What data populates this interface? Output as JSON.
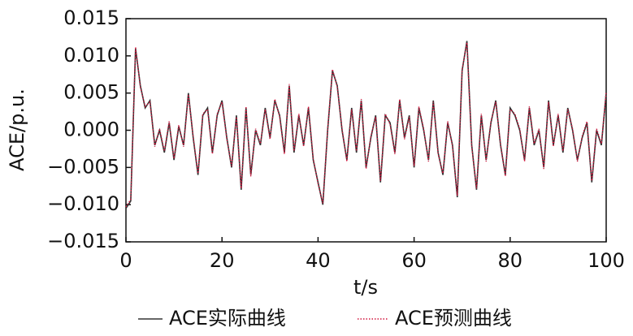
{
  "chart_data": {
    "type": "line",
    "y_label": "ACE/p.u.",
    "x_label": "t/s",
    "xlim": [
      0,
      100
    ],
    "xticks": [
      0,
      20,
      40,
      60,
      80,
      100
    ],
    "ylim": [
      -0.015,
      0.015
    ],
    "yticks": [
      {
        "value": -0.015,
        "label": "−0.015"
      },
      {
        "value": -0.01,
        "label": "−0.010"
      },
      {
        "value": -0.005,
        "label": "−0.005"
      },
      {
        "value": 0,
        "label": "0.000"
      },
      0.005,
      {
        "value": 0.01,
        "label": "0.010"
      },
      0.015
    ],
    "grid": false,
    "legend": "bottom",
    "x": [
      0,
      1,
      2,
      3,
      4,
      5,
      6,
      7,
      8,
      9,
      10,
      11,
      12,
      13,
      14,
      15,
      16,
      17,
      18,
      19,
      20,
      21,
      22,
      23,
      24,
      25,
      26,
      27,
      28,
      29,
      30,
      31,
      32,
      33,
      34,
      35,
      36,
      37,
      38,
      39,
      40,
      41,
      42,
      43,
      44,
      45,
      46,
      47,
      48,
      49,
      50,
      51,
      52,
      53,
      54,
      55,
      56,
      57,
      58,
      59,
      60,
      61,
      62,
      63,
      64,
      65,
      66,
      67,
      68,
      69,
      70,
      71,
      72,
      73,
      74,
      75,
      76,
      77,
      78,
      79,
      80,
      81,
      82,
      83,
      84,
      85,
      86,
      87,
      88,
      89,
      90,
      91,
      92,
      93,
      94,
      95,
      96,
      97,
      98,
      99,
      100
    ],
    "series": [
      {
        "name": "ACE实际曲线",
        "color": "#333333",
        "linestyle": "solid",
        "values": [
          -0.0105,
          -0.0095,
          0.011,
          0.006,
          0.003,
          0.004,
          -0.002,
          0.0,
          -0.003,
          0.001,
          -0.004,
          0.0005,
          -0.002,
          0.005,
          -0.001,
          -0.006,
          0.002,
          0.003,
          -0.003,
          0.002,
          0.004,
          -0.001,
          -0.005,
          0.002,
          -0.008,
          0.003,
          -0.006,
          0.0,
          -0.002,
          0.003,
          -0.001,
          0.004,
          0.002,
          -0.003,
          0.006,
          -0.003,
          0.002,
          -0.002,
          0.003,
          -0.004,
          -0.007,
          -0.01,
          0.0,
          0.008,
          0.006,
          0.0,
          -0.004,
          0.003,
          -0.003,
          0.004,
          -0.005,
          -0.001,
          0.002,
          -0.007,
          0.002,
          0.001,
          -0.003,
          0.004,
          -0.001,
          0.002,
          -0.005,
          0.003,
          0.0,
          -0.004,
          0.004,
          -0.003,
          -0.006,
          0.001,
          -0.002,
          -0.009,
          0.008,
          0.012,
          -0.002,
          -0.008,
          0.002,
          -0.004,
          0.001,
          0.004,
          -0.002,
          -0.006,
          0.003,
          0.002,
          0.0,
          -0.004,
          0.003,
          -0.002,
          0.0,
          -0.005,
          0.004,
          -0.002,
          0.002,
          -0.003,
          0.003,
          0.0,
          -0.004,
          -0.001,
          0.001,
          -0.007,
          0.0,
          -0.002,
          0.005
        ]
      },
      {
        "name": "ACE预测曲线",
        "color": "#d0143c",
        "linestyle": "dotted",
        "values": [
          -0.0103,
          -0.0093,
          0.0112,
          0.0058,
          0.0032,
          0.0038,
          -0.0022,
          0.0002,
          -0.0028,
          0.0012,
          -0.0038,
          0.0007,
          -0.0022,
          0.0048,
          -0.0008,
          -0.0058,
          0.0022,
          0.0028,
          -0.0032,
          0.0022,
          0.0038,
          -0.0012,
          -0.0048,
          0.0018,
          -0.0078,
          0.0032,
          -0.0062,
          0.0002,
          -0.0018,
          0.0028,
          -0.0012,
          0.0042,
          0.0018,
          -0.0032,
          0.0062,
          -0.0028,
          0.0022,
          -0.0022,
          0.0032,
          -0.0038,
          -0.0072,
          -0.0098,
          0.0002,
          0.0082,
          0.0058,
          0.0002,
          -0.0042,
          0.0028,
          -0.0028,
          0.0042,
          -0.0052,
          -0.0008,
          0.0018,
          -0.0068,
          0.0022,
          0.0008,
          -0.0032,
          0.0042,
          -0.0012,
          0.0018,
          -0.0048,
          0.0032,
          0.0002,
          -0.0042,
          0.0038,
          -0.0032,
          -0.0058,
          0.0012,
          -0.0022,
          -0.0088,
          0.0082,
          0.0118,
          -0.0022,
          -0.0078,
          0.0022,
          -0.0042,
          0.0012,
          0.0038,
          -0.0018,
          -0.0062,
          0.0028,
          0.0022,
          0.0002,
          -0.0042,
          0.0032,
          -0.0018,
          0.0002,
          -0.0052,
          0.0038,
          -0.0022,
          0.0022,
          -0.0028,
          0.0028,
          0.0002,
          -0.0042,
          -0.0008,
          0.0012,
          -0.0068,
          0.0002,
          -0.0018,
          0.0052
        ]
      }
    ]
  }
}
